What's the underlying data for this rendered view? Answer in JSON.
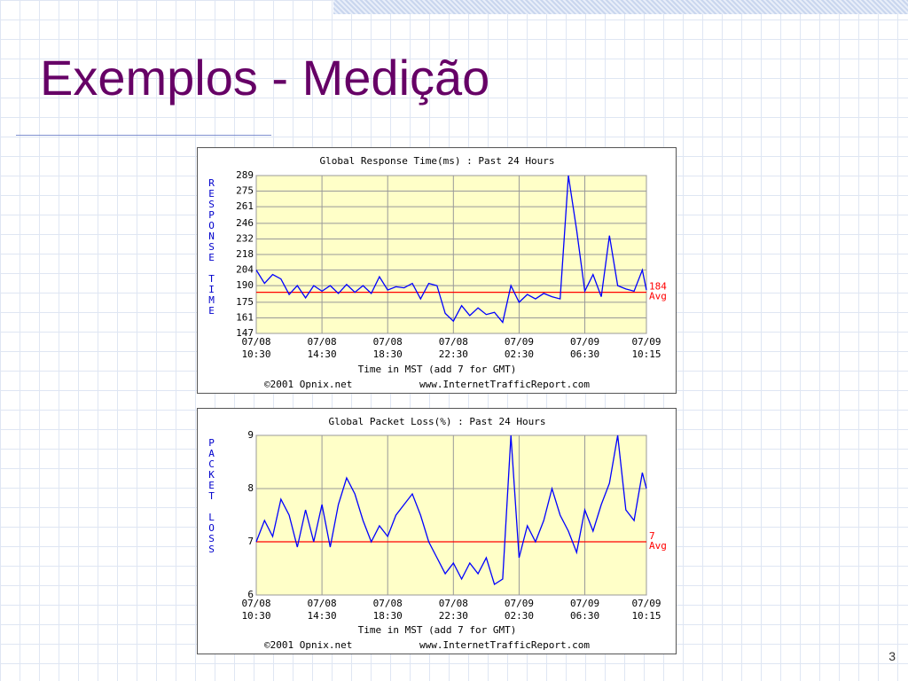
{
  "slide": {
    "title": "Exemplos - Medição",
    "page_number": "3"
  },
  "chart_data": [
    {
      "type": "line",
      "title": "Global Response Time(ms) : Past 24 Hours",
      "y_label": "RESPONSE TIME",
      "x_label": "Time in MST (add 7 for GMT)",
      "credit_left": "©2001 Opnix.net",
      "credit_right": "www.InternetTrafficReport.com",
      "xlim": [
        0,
        23.75
      ],
      "xticks": [
        {
          "value": 0,
          "label": "07/08\n10:30"
        },
        {
          "value": 4,
          "label": "07/08\n14:30"
        },
        {
          "value": 8,
          "label": "07/08\n18:30"
        },
        {
          "value": 12,
          "label": "07/08\n22:30"
        },
        {
          "value": 16,
          "label": "07/09\n02:30"
        },
        {
          "value": 20,
          "label": "07/09\n06:30"
        },
        {
          "value": 23.75,
          "label": "07/09\n10:15"
        }
      ],
      "ylim": [
        147,
        289
      ],
      "yticks": [
        147,
        161,
        175,
        190,
        204,
        218,
        232,
        246,
        261,
        275,
        289
      ],
      "grid": true,
      "avg": 184,
      "avg_text": "184",
      "avg_label": "Avg",
      "avg_color": "#ff0000",
      "x": [
        0,
        0.5,
        1,
        1.5,
        2,
        2.5,
        3,
        3.5,
        4,
        4.5,
        5,
        5.5,
        6,
        6.5,
        7,
        7.5,
        8,
        8.5,
        9,
        9.5,
        10,
        10.5,
        11,
        11.5,
        12,
        12.5,
        13,
        13.5,
        14,
        14.5,
        15,
        15.5,
        16,
        16.5,
        17,
        17.5,
        18,
        18.5,
        19,
        19.5,
        20,
        20.5,
        21,
        21.5,
        22,
        22.5,
        23,
        23.5,
        23.75
      ],
      "series": [
        {
          "name": "Response Time",
          "color": "#0000ff",
          "values": [
            204,
            192,
            200,
            196,
            182,
            190,
            179,
            190,
            185,
            190,
            183,
            191,
            184,
            190,
            183,
            198,
            186,
            189,
            188,
            192,
            178,
            192,
            190,
            165,
            158,
            172,
            163,
            170,
            164,
            166,
            157,
            190,
            175,
            182,
            178,
            183,
            180,
            178,
            289,
            240,
            185,
            200,
            180,
            235,
            190,
            187,
            185,
            204,
            186
          ]
        }
      ]
    },
    {
      "type": "line",
      "title": "Global Packet Loss(%) : Past 24 Hours",
      "y_label": "PACKET LOSS",
      "x_label": "Time in MST (add 7 for GMT)",
      "credit_left": "©2001 Opnix.net",
      "credit_right": "www.InternetTrafficReport.com",
      "xlim": [
        0,
        23.75
      ],
      "xticks": [
        {
          "value": 0,
          "label": "07/08\n10:30"
        },
        {
          "value": 4,
          "label": "07/08\n14:30"
        },
        {
          "value": 8,
          "label": "07/08\n18:30"
        },
        {
          "value": 12,
          "label": "07/08\n22:30"
        },
        {
          "value": 16,
          "label": "07/09\n02:30"
        },
        {
          "value": 20,
          "label": "07/09\n06:30"
        },
        {
          "value": 23.75,
          "label": "07/09\n10:15"
        }
      ],
      "ylim": [
        6,
        9
      ],
      "yticks": [
        6,
        7,
        8,
        9
      ],
      "grid": true,
      "avg": 7,
      "avg_text": "7",
      "avg_label": "Avg",
      "avg_color": "#ff0000",
      "x": [
        0,
        0.5,
        1,
        1.5,
        2,
        2.5,
        3,
        3.5,
        4,
        4.5,
        5,
        5.5,
        6,
        6.5,
        7,
        7.5,
        8,
        8.5,
        9,
        9.5,
        10,
        10.5,
        11,
        11.5,
        12,
        12.5,
        13,
        13.5,
        14,
        14.5,
        15,
        15.5,
        16,
        16.5,
        17,
        17.5,
        18,
        18.5,
        19,
        19.5,
        20,
        20.5,
        21,
        21.5,
        22,
        22.5,
        23,
        23.5,
        23.75
      ],
      "series": [
        {
          "name": "Packet Loss",
          "color": "#0000ff",
          "values": [
            7.0,
            7.4,
            7.1,
            7.8,
            7.5,
            6.9,
            7.6,
            7.0,
            7.7,
            6.9,
            7.7,
            8.2,
            7.9,
            7.4,
            7.0,
            7.3,
            7.1,
            7.5,
            7.7,
            7.9,
            7.5,
            7.0,
            6.7,
            6.4,
            6.6,
            6.3,
            6.6,
            6.4,
            6.7,
            6.2,
            6.3,
            9.0,
            6.7,
            7.3,
            7.0,
            7.4,
            8.0,
            7.5,
            7.2,
            6.8,
            7.6,
            7.2,
            7.7,
            8.1,
            9.0,
            7.6,
            7.4,
            8.3,
            8.0
          ]
        }
      ]
    }
  ]
}
